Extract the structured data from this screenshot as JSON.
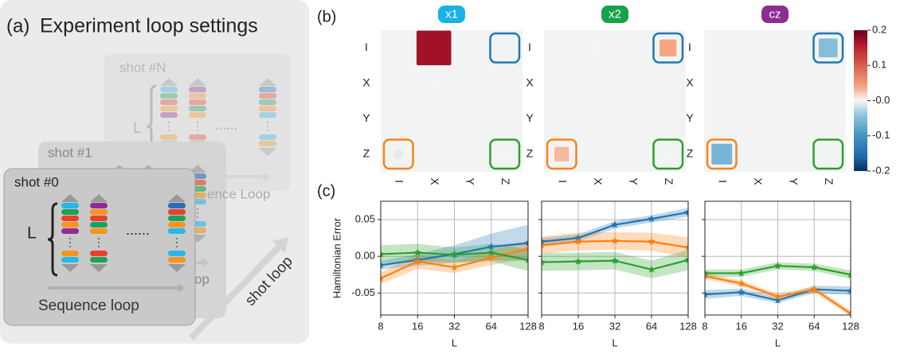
{
  "panel_a": {
    "label": "(a)",
    "title": "Experiment loop settings",
    "shots": [
      {
        "name": "shot #N",
        "L": "L",
        "dots": "......",
        "loop": "ence Loop"
      },
      {
        "name": "shot #1",
        "loop": "op"
      },
      {
        "name": "shot #0",
        "L": "L",
        "dots": "......",
        "loop": "Sequence loop"
      }
    ],
    "shot_loop": "shot loop"
  },
  "panel_labels": {
    "b": "(b)",
    "c": "(c)"
  },
  "colorbar": {
    "zlim": [
      -0.2,
      0.2
    ],
    "ticks": [
      0.2,
      0.1,
      {
        "value": 0,
        "label": "-0.0"
      },
      -0.1,
      -0.2
    ]
  },
  "chart_data": [
    {
      "type": "heatmap",
      "title": "x1",
      "title_color": "#1ab0e8",
      "rows": [
        "I",
        "X",
        "Y",
        "Z"
      ],
      "columns": [
        "I",
        "X",
        "Y",
        "Z"
      ],
      "values": [
        [
          0,
          0.17,
          0,
          0.003
        ],
        [
          0,
          0.002,
          0,
          0
        ],
        [
          0,
          0,
          0.003,
          0
        ],
        [
          -0.01,
          0,
          0,
          0.002
        ]
      ]
    },
    {
      "type": "heatmap",
      "title": "x2",
      "title_color": "#17a34a",
      "rows": [
        "I",
        "X",
        "Y",
        "Z"
      ],
      "columns": [
        "I",
        "X",
        "Y",
        "Z"
      ],
      "values": [
        [
          0,
          0.002,
          0,
          0.04
        ],
        [
          0.003,
          0,
          0,
          0
        ],
        [
          0,
          0,
          0,
          0
        ],
        [
          0.03,
          0,
          0,
          0.002
        ]
      ]
    },
    {
      "type": "heatmap",
      "title": "cz",
      "title_color": "#8e2d91",
      "rows": [
        "I",
        "X",
        "Y",
        "Z"
      ],
      "columns": [
        "I",
        "X",
        "Y",
        "Z"
      ],
      "values": [
        [
          0,
          0,
          0,
          -0.05
        ],
        [
          0,
          0,
          0,
          0
        ],
        [
          0,
          0,
          0,
          0
        ],
        [
          -0.06,
          0,
          0,
          -0.003
        ]
      ]
    },
    {
      "type": "line",
      "ylabel": "Hamiltonian Error",
      "xlabel": "L",
      "xscale": "log",
      "grid": true,
      "x": [
        8,
        16,
        32,
        64,
        128
      ],
      "xlim": [
        8,
        128
      ],
      "xticks": [
        8,
        16,
        32,
        64,
        128
      ],
      "ylim": [
        -0.08,
        0.075
      ],
      "yticks": [
        0.05,
        {
          "value": 0,
          "label": "0.00"
        },
        -0.05
      ],
      "ytick_labels": true,
      "series": [
        {
          "color": "#1f77b4",
          "values": [
            -0.012,
            -0.005,
            0.003,
            0.013,
            0.018
          ],
          "errors": [
            0.006,
            0.008,
            0.012,
            0.018,
            0.025
          ]
        },
        {
          "color": "#ff7f0e",
          "values": [
            -0.03,
            -0.007,
            -0.015,
            -0.002,
            0.01
          ],
          "errors": [
            0.008,
            0.01,
            0.008,
            0.01,
            0.012
          ]
        },
        {
          "color": "#2ca02c",
          "values": [
            0.003,
            0.005,
            0.002,
            0.005,
            -0.005
          ],
          "errors": [
            0.012,
            0.012,
            0.01,
            0.012,
            0.015
          ]
        }
      ]
    },
    {
      "type": "line",
      "xlabel": "L",
      "xscale": "log",
      "grid": true,
      "x": [
        8,
        16,
        32,
        64,
        128
      ],
      "xlim": [
        8,
        128
      ],
      "xticks": [
        8,
        16,
        32,
        64,
        128
      ],
      "ylim": [
        -0.08,
        0.075
      ],
      "yticks": [
        0.05,
        0,
        -0.05
      ],
      "ytick_labels": false,
      "series": [
        {
          "color": "#1f77b4",
          "values": [
            0.02,
            0.025,
            0.043,
            0.051,
            0.06
          ],
          "errors": [
            0.005,
            0.005,
            0.005,
            0.005,
            0.006
          ]
        },
        {
          "color": "#ff7f0e",
          "values": [
            0.015,
            0.02,
            0.021,
            0.02,
            0.012
          ],
          "errors": [
            0.012,
            0.012,
            0.012,
            0.012,
            0.014
          ]
        },
        {
          "color": "#2ca02c",
          "values": [
            -0.008,
            -0.007,
            -0.006,
            -0.018,
            -0.005
          ],
          "errors": [
            0.012,
            0.012,
            0.012,
            0.012,
            0.014
          ]
        }
      ]
    },
    {
      "type": "line",
      "xlabel": "L",
      "xscale": "log",
      "grid": true,
      "x": [
        8,
        16,
        32,
        64,
        128
      ],
      "xlim": [
        8,
        128
      ],
      "xticks": [
        8,
        16,
        32,
        64,
        128
      ],
      "ylim": [
        -0.08,
        0.075
      ],
      "yticks": [
        0.05,
        0,
        -0.05
      ],
      "ytick_labels": false,
      "series": [
        {
          "color": "#1f77b4",
          "values": [
            -0.052,
            -0.049,
            -0.06,
            -0.045,
            -0.047
          ],
          "errors": [
            0.006,
            0.005,
            0.004,
            0.005,
            0.006
          ]
        },
        {
          "color": "#ff7f0e",
          "values": [
            -0.027,
            -0.037,
            -0.055,
            -0.045,
            -0.078
          ],
          "errors": [
            0.004,
            0.004,
            0.004,
            0.004,
            0.004
          ]
        },
        {
          "color": "#2ca02c",
          "values": [
            -0.023,
            -0.023,
            -0.013,
            -0.015,
            -0.025
          ],
          "errors": [
            0.005,
            0.005,
            0.005,
            0.005,
            0.006
          ]
        }
      ]
    }
  ]
}
